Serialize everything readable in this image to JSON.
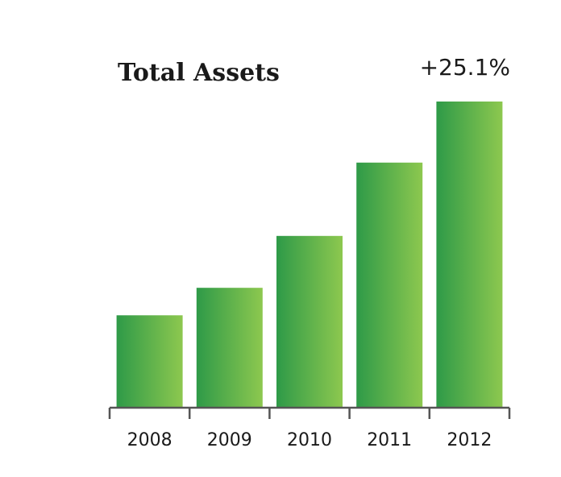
{
  "chart_data": {
    "type": "bar",
    "title": "Total Assets",
    "annotation": "+25.1%",
    "categories": [
      "2008",
      "2009",
      "2010",
      "2011",
      "2012"
    ],
    "values": [
      30,
      39,
      56,
      80,
      100
    ],
    "ylim": [
      0,
      100
    ],
    "grid": false,
    "legend": "none",
    "colors": {
      "bar_start": "#2e9a48",
      "bar_end": "#8dc84f",
      "axis": "#555555",
      "text": "#1a1a1a"
    }
  }
}
